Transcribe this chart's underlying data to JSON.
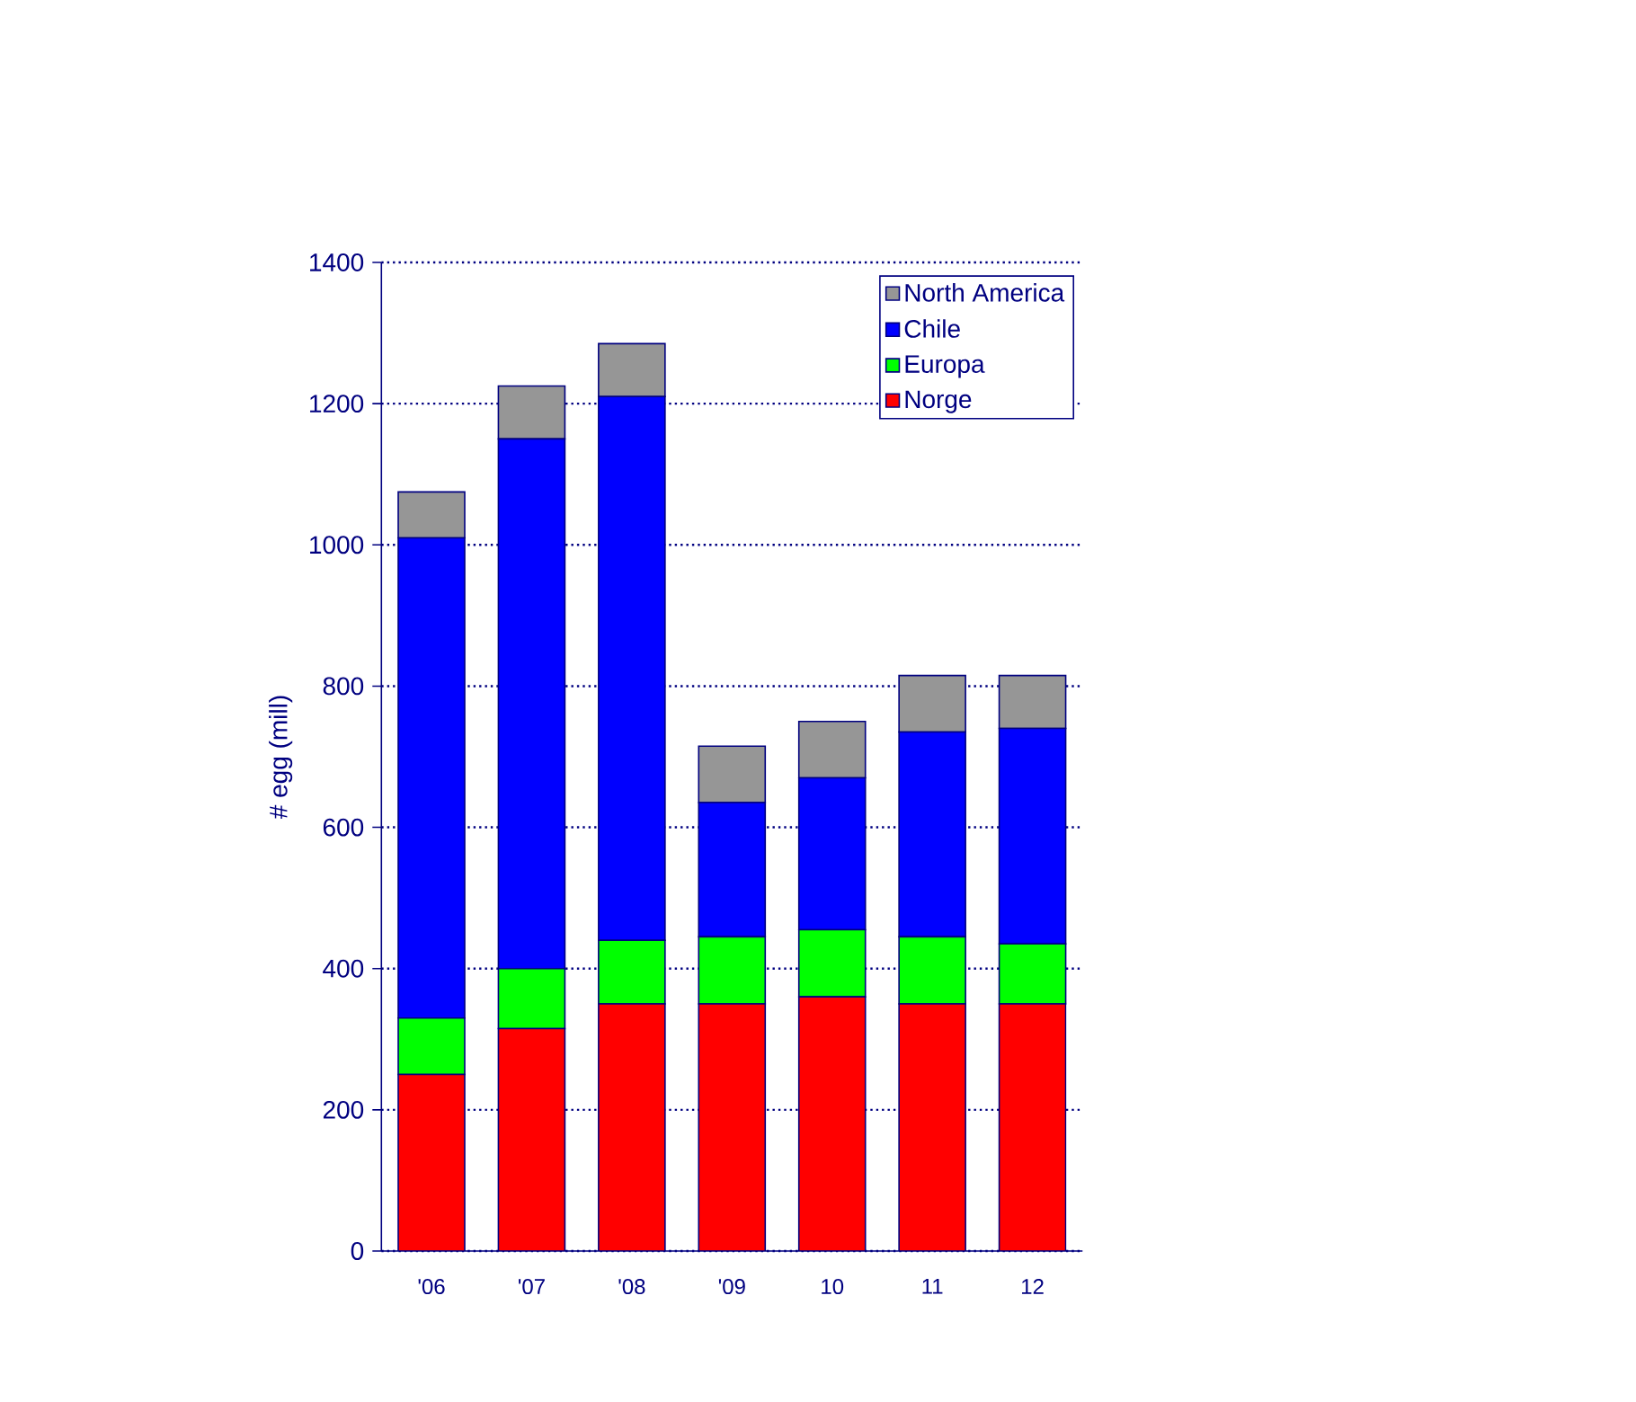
{
  "chart_data": {
    "type": "bar",
    "stacked": true,
    "ylabel": "# egg (mill)",
    "categories": [
      "'06",
      "'07",
      "'08",
      "'09",
      "10",
      "11",
      "12"
    ],
    "series": [
      {
        "name": "Norge",
        "color": "#ff0000",
        "values": [
          250,
          315,
          350,
          350,
          360,
          350,
          350
        ]
      },
      {
        "name": "Europa",
        "color": "#00ff00",
        "values": [
          80,
          85,
          90,
          95,
          95,
          95,
          85
        ]
      },
      {
        "name": "Chile",
        "color": "#0000ff",
        "values": [
          680,
          750,
          770,
          190,
          215,
          290,
          305
        ]
      },
      {
        "name": "North America",
        "color": "#969696",
        "values": [
          65,
          75,
          75,
          80,
          80,
          80,
          75
        ]
      }
    ],
    "ylim": [
      0,
      1400
    ],
    "yticks": [
      0,
      200,
      400,
      600,
      800,
      1000,
      1200,
      1400
    ],
    "grid": "y",
    "legend": "top right"
  }
}
